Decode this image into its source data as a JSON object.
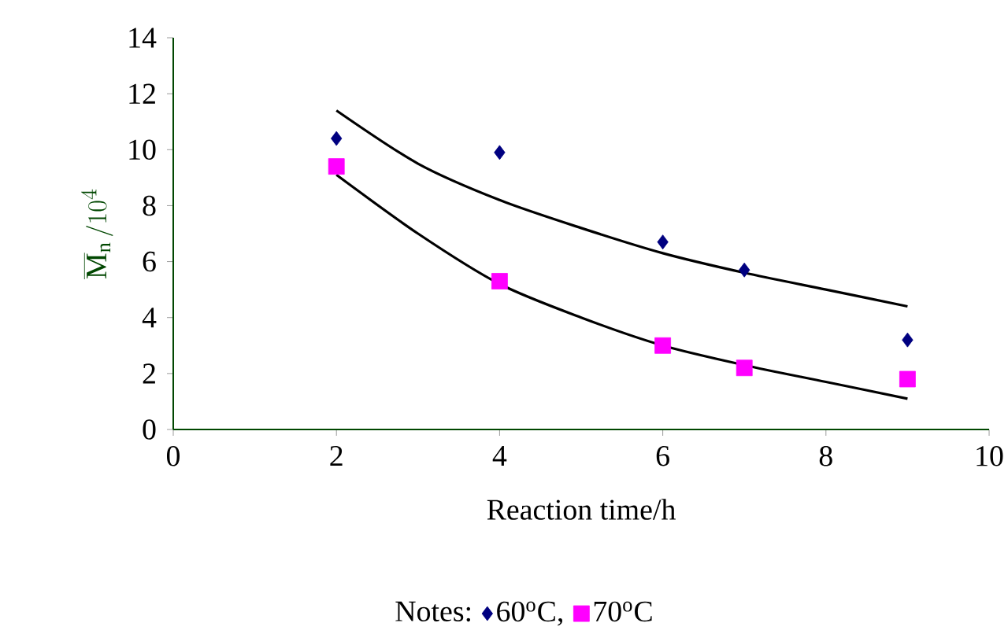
{
  "chart_data": {
    "type": "scatter",
    "xlabel": "Reaction time/h",
    "ylabel": "\\overline{\\mathrm{M}}_{\\mathrm{n}}\\,/10^{4}",
    "legend_title": "Notes:",
    "xlim": [
      0,
      10
    ],
    "ylim": [
      0,
      14
    ],
    "xticks": [
      0,
      2,
      4,
      6,
      8,
      10
    ],
    "yticks": [
      0,
      2,
      4,
      6,
      8,
      10,
      12,
      14
    ],
    "grid": false,
    "legend": "bottom",
    "series": [
      {
        "name": "60$^{o}$C,",
        "color": "#000080",
        "marker": "diamond",
        "x": [
          2,
          4,
          6,
          7,
          9
        ],
        "values": [
          10.4,
          9.9,
          6.7,
          5.7,
          3.2
        ]
      },
      {
        "name": "70$^{o}$C",
        "color": "#ff00ff",
        "marker": "square",
        "x": [
          2,
          4,
          6,
          7,
          9
        ],
        "values": [
          9.4,
          5.3,
          3.0,
          2.2,
          1.8
        ]
      },
      {
        "type": "line",
        "color": "#000000",
        "marker": "none",
        "x": [
          2,
          3,
          4,
          5,
          6,
          7,
          8,
          9
        ],
        "values": [
          11.4,
          9.5,
          8.2,
          7.2,
          6.3,
          5.6,
          5.0,
          4.4
        ]
      },
      {
        "type": "line",
        "color": "#000000",
        "marker": "none",
        "x": [
          2,
          3,
          4,
          5,
          6,
          7,
          8,
          9
        ],
        "values": [
          9.1,
          7.0,
          5.2,
          4.0,
          3.0,
          2.3,
          1.7,
          1.1
        ]
      }
    ]
  }
}
